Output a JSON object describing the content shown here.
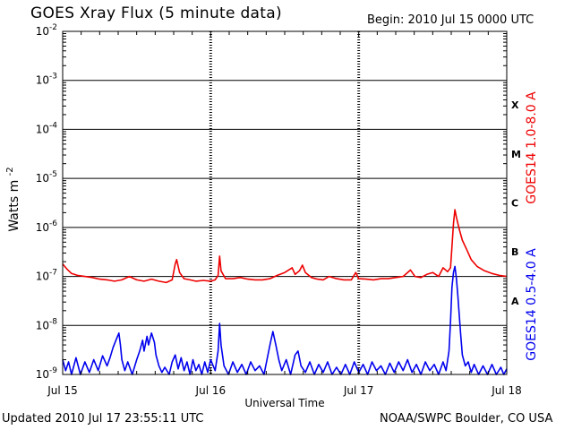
{
  "header": {
    "title": "GOES Xray Flux (5 minute data)",
    "begin": "Begin:  2010 Jul 15 0000 UTC"
  },
  "footer": {
    "updated": "Updated 2010 Jul 17 23:55:11 UTC",
    "credit": "NOAA/SWPC Boulder, CO USA"
  },
  "chart_data": {
    "type": "line",
    "title": "GOES Xray Flux (5 minute data)",
    "xlabel": "Universal Time",
    "ylabel": "Watts m",
    "ylabel_superscript": "-2",
    "y_scale": "log",
    "ylim": [
      1e-09,
      0.01
    ],
    "yticks": [
      {
        "base": "10",
        "exp": "-9",
        "value": 1e-09
      },
      {
        "base": "10",
        "exp": "-8",
        "value": 1e-08
      },
      {
        "base": "10",
        "exp": "-7",
        "value": 1e-07
      },
      {
        "base": "10",
        "exp": "-6",
        "value": 1e-06
      },
      {
        "base": "10",
        "exp": "-5",
        "value": 1e-05
      },
      {
        "base": "10",
        "exp": "-4",
        "value": 0.0001
      },
      {
        "base": "10",
        "exp": "-3",
        "value": 0.001
      },
      {
        "base": "10",
        "exp": "-2",
        "value": 0.01
      }
    ],
    "xlim_days": [
      0,
      3
    ],
    "xticks": [
      {
        "label": "Jul 15",
        "day": 0
      },
      {
        "label": "Jul 16",
        "day": 1
      },
      {
        "label": "Jul 17",
        "day": 2
      },
      {
        "label": "Jul 18",
        "day": 3
      }
    ],
    "flare_classes": [
      {
        "label": "A",
        "value": 1e-08
      },
      {
        "label": "B",
        "value": 1e-07
      },
      {
        "label": "C",
        "value": 1e-06
      },
      {
        "label": "M",
        "value": 1e-05
      },
      {
        "label": "X",
        "value": 0.0001
      }
    ],
    "grid": true,
    "series": [
      {
        "name": "GOES14 1.0-8.0 A",
        "color": "#ee0000",
        "points": [
          [
            0.0,
            1.8e-07
          ],
          [
            0.03,
            1.4e-07
          ],
          [
            0.06,
            1.15e-07
          ],
          [
            0.1,
            1.05e-07
          ],
          [
            0.15,
            1e-07
          ],
          [
            0.2,
            9.5e-08
          ],
          [
            0.25,
            8.8e-08
          ],
          [
            0.3,
            8.5e-08
          ],
          [
            0.35,
            8e-08
          ],
          [
            0.4,
            8.5e-08
          ],
          [
            0.45,
            1e-07
          ],
          [
            0.5,
            8.5e-08
          ],
          [
            0.55,
            8e-08
          ],
          [
            0.6,
            8.8e-08
          ],
          [
            0.65,
            8e-08
          ],
          [
            0.7,
            7.5e-08
          ],
          [
            0.74,
            8.5e-08
          ],
          [
            0.76,
            1.8e-07
          ],
          [
            0.77,
            2.2e-07
          ],
          [
            0.79,
            1.2e-07
          ],
          [
            0.82,
            9e-08
          ],
          [
            0.86,
            8.5e-08
          ],
          [
            0.9,
            8e-08
          ],
          [
            0.95,
            8.3e-08
          ],
          [
            1.0,
            8e-08
          ],
          [
            1.03,
            8.5e-08
          ],
          [
            1.05,
            1.05e-07
          ],
          [
            1.06,
            2.6e-07
          ],
          [
            1.07,
            1.3e-07
          ],
          [
            1.1,
            9e-08
          ],
          [
            1.15,
            9e-08
          ],
          [
            1.2,
            9.5e-08
          ],
          [
            1.25,
            8.8e-08
          ],
          [
            1.3,
            8.5e-08
          ],
          [
            1.35,
            8.5e-08
          ],
          [
            1.4,
            9e-08
          ],
          [
            1.45,
            1.05e-07
          ],
          [
            1.5,
            1.2e-07
          ],
          [
            1.55,
            1.5e-07
          ],
          [
            1.57,
            1.1e-07
          ],
          [
            1.6,
            1.3e-07
          ],
          [
            1.62,
            1.7e-07
          ],
          [
            1.64,
            1.2e-07
          ],
          [
            1.68,
            9.5e-08
          ],
          [
            1.72,
            8.8e-08
          ],
          [
            1.76,
            8.5e-08
          ],
          [
            1.8,
            1e-07
          ],
          [
            1.85,
            9e-08
          ],
          [
            1.9,
            8.5e-08
          ],
          [
            1.95,
            8.5e-08
          ],
          [
            1.98,
            1.2e-07
          ],
          [
            2.0,
            9e-08
          ],
          [
            2.05,
            8.8e-08
          ],
          [
            2.1,
            8.5e-08
          ],
          [
            2.15,
            9e-08
          ],
          [
            2.2,
            9e-08
          ],
          [
            2.25,
            9.5e-08
          ],
          [
            2.3,
            1e-07
          ],
          [
            2.35,
            1.35e-07
          ],
          [
            2.38,
            1e-07
          ],
          [
            2.42,
            9.5e-08
          ],
          [
            2.46,
            1.1e-07
          ],
          [
            2.5,
            1.2e-07
          ],
          [
            2.54,
            1e-07
          ],
          [
            2.57,
            1.5e-07
          ],
          [
            2.6,
            1.25e-07
          ],
          [
            2.62,
            1.5e-07
          ],
          [
            2.63,
            4e-07
          ],
          [
            2.64,
            1.2e-06
          ],
          [
            2.65,
            2.3e-06
          ],
          [
            2.66,
            1.6e-06
          ],
          [
            2.68,
            9e-07
          ],
          [
            2.7,
            5.5e-07
          ],
          [
            2.73,
            3.5e-07
          ],
          [
            2.76,
            2.2e-07
          ],
          [
            2.8,
            1.6e-07
          ],
          [
            2.85,
            1.3e-07
          ],
          [
            2.9,
            1.15e-07
          ],
          [
            2.95,
            1.05e-07
          ],
          [
            3.0,
            1e-07
          ]
        ]
      },
      {
        "name": "GOES14 0.5-4.0 A",
        "color": "#0000ee",
        "points": [
          [
            0.0,
            2e-09
          ],
          [
            0.02,
            1.2e-09
          ],
          [
            0.04,
            1.8e-09
          ],
          [
            0.06,
            1e-09
          ],
          [
            0.09,
            2.2e-09
          ],
          [
            0.12,
            1e-09
          ],
          [
            0.15,
            1.8e-09
          ],
          [
            0.18,
            1.1e-09
          ],
          [
            0.21,
            2e-09
          ],
          [
            0.24,
            1.2e-09
          ],
          [
            0.27,
            2.4e-09
          ],
          [
            0.3,
            1.5e-09
          ],
          [
            0.32,
            2.2e-09
          ],
          [
            0.34,
            3.5e-09
          ],
          [
            0.36,
            5e-09
          ],
          [
            0.38,
            7e-09
          ],
          [
            0.39,
            4e-09
          ],
          [
            0.4,
            2e-09
          ],
          [
            0.42,
            1.2e-09
          ],
          [
            0.44,
            1.8e-09
          ],
          [
            0.47,
            1e-09
          ],
          [
            0.5,
            2e-09
          ],
          [
            0.52,
            3e-09
          ],
          [
            0.54,
            5e-09
          ],
          [
            0.55,
            3e-09
          ],
          [
            0.57,
            6e-09
          ],
          [
            0.58,
            4e-09
          ],
          [
            0.6,
            7e-09
          ],
          [
            0.62,
            4.5e-09
          ],
          [
            0.63,
            2.5e-09
          ],
          [
            0.65,
            1.5e-09
          ],
          [
            0.67,
            1.1e-09
          ],
          [
            0.69,
            1.4e-09
          ],
          [
            0.72,
            1e-09
          ],
          [
            0.74,
            1.8e-09
          ],
          [
            0.76,
            2.5e-09
          ],
          [
            0.78,
            1.3e-09
          ],
          [
            0.8,
            2.2e-09
          ],
          [
            0.82,
            1.2e-09
          ],
          [
            0.84,
            1.8e-09
          ],
          [
            0.86,
            1e-09
          ],
          [
            0.88,
            2e-09
          ],
          [
            0.9,
            1.2e-09
          ],
          [
            0.92,
            1.6e-09
          ],
          [
            0.94,
            1e-09
          ],
          [
            0.96,
            1.8e-09
          ],
          [
            0.98,
            1.1e-09
          ],
          [
            1.0,
            2e-09
          ],
          [
            1.03,
            1.2e-09
          ],
          [
            1.05,
            3e-09
          ],
          [
            1.06,
            1.1e-08
          ],
          [
            1.07,
            4e-09
          ],
          [
            1.09,
            1.5e-09
          ],
          [
            1.12,
            1e-09
          ],
          [
            1.15,
            1.8e-09
          ],
          [
            1.18,
            1.1e-09
          ],
          [
            1.21,
            1.6e-09
          ],
          [
            1.24,
            1e-09
          ],
          [
            1.27,
            1.8e-09
          ],
          [
            1.3,
            1.2e-09
          ],
          [
            1.33,
            1.5e-09
          ],
          [
            1.36,
            1e-09
          ],
          [
            1.38,
            2e-09
          ],
          [
            1.4,
            4e-09
          ],
          [
            1.42,
            7.5e-09
          ],
          [
            1.44,
            4e-09
          ],
          [
            1.46,
            2e-09
          ],
          [
            1.48,
            1.2e-09
          ],
          [
            1.51,
            2e-09
          ],
          [
            1.54,
            1e-09
          ],
          [
            1.57,
            2.5e-09
          ],
          [
            1.59,
            3e-09
          ],
          [
            1.61,
            1.5e-09
          ],
          [
            1.64,
            1.1e-09
          ],
          [
            1.67,
            1.8e-09
          ],
          [
            1.7,
            1e-09
          ],
          [
            1.73,
            1.6e-09
          ],
          [
            1.76,
            1.1e-09
          ],
          [
            1.79,
            1.8e-09
          ],
          [
            1.82,
            1e-09
          ],
          [
            1.85,
            1.4e-09
          ],
          [
            1.88,
            1e-09
          ],
          [
            1.91,
            1.6e-09
          ],
          [
            1.94,
            1e-09
          ],
          [
            1.97,
            1.8e-09
          ],
          [
            2.0,
            1.1e-09
          ],
          [
            2.03,
            1.6e-09
          ],
          [
            2.06,
            1e-09
          ],
          [
            2.09,
            1.8e-09
          ],
          [
            2.12,
            1.2e-09
          ],
          [
            2.15,
            1.5e-09
          ],
          [
            2.18,
            1e-09
          ],
          [
            2.21,
            1.7e-09
          ],
          [
            2.24,
            1.1e-09
          ],
          [
            2.27,
            1.8e-09
          ],
          [
            2.3,
            1.2e-09
          ],
          [
            2.33,
            2e-09
          ],
          [
            2.36,
            1.1e-09
          ],
          [
            2.39,
            1.6e-09
          ],
          [
            2.42,
            1e-09
          ],
          [
            2.45,
            1.8e-09
          ],
          [
            2.48,
            1.2e-09
          ],
          [
            2.51,
            1.6e-09
          ],
          [
            2.54,
            1e-09
          ],
          [
            2.57,
            1.8e-09
          ],
          [
            2.59,
            1.2e-09
          ],
          [
            2.61,
            3e-09
          ],
          [
            2.62,
            1.2e-08
          ],
          [
            2.63,
            6e-08
          ],
          [
            2.64,
            1.2e-07
          ],
          [
            2.65,
            1.6e-07
          ],
          [
            2.66,
            9e-08
          ],
          [
            2.67,
            4e-08
          ],
          [
            2.68,
            1.5e-08
          ],
          [
            2.69,
            6e-09
          ],
          [
            2.7,
            2.5e-09
          ],
          [
            2.72,
            1.5e-09
          ],
          [
            2.74,
            1.8e-09
          ],
          [
            2.76,
            1.1e-09
          ],
          [
            2.78,
            1.6e-09
          ],
          [
            2.81,
            1e-09
          ],
          [
            2.84,
            1.5e-09
          ],
          [
            2.87,
            1e-09
          ],
          [
            2.9,
            1.6e-09
          ],
          [
            2.93,
            1e-09
          ],
          [
            2.96,
            1.4e-09
          ],
          [
            2.98,
            1e-09
          ],
          [
            3.0,
            1.3e-09
          ]
        ]
      }
    ]
  }
}
